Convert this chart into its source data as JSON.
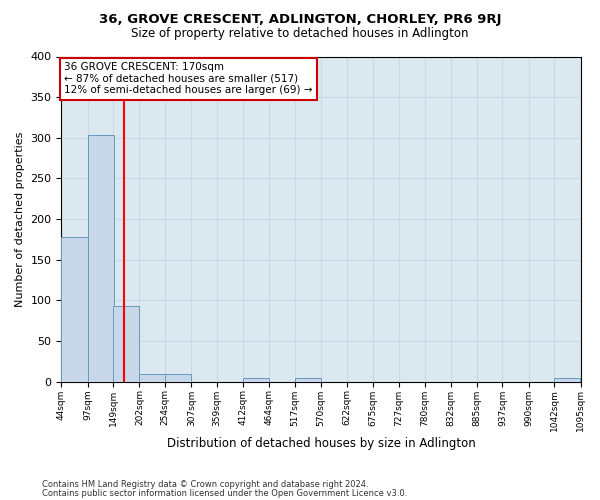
{
  "title": "36, GROVE CRESCENT, ADLINGTON, CHORLEY, PR6 9RJ",
  "subtitle": "Size of property relative to detached houses in Adlington",
  "xlabel": "Distribution of detached houses by size in Adlington",
  "ylabel": "Number of detached properties",
  "annotation_line1": "36 GROVE CRESCENT: 170sqm",
  "annotation_line2": "← 87% of detached houses are smaller (517)",
  "annotation_line3": "12% of semi-detached houses are larger (69) →",
  "property_size": 170,
  "bin_edges": [
    44,
    97,
    149,
    202,
    254,
    307,
    359,
    412,
    464,
    517,
    570,
    622,
    675,
    727,
    780,
    832,
    885,
    937,
    990,
    1042,
    1095
  ],
  "bin_labels": [
    "44sqm",
    "97sqm",
    "149sqm",
    "202sqm",
    "254sqm",
    "307sqm",
    "359sqm",
    "412sqm",
    "464sqm",
    "517sqm",
    "570sqm",
    "622sqm",
    "675sqm",
    "727sqm",
    "780sqm",
    "832sqm",
    "885sqm",
    "937sqm",
    "990sqm",
    "1042sqm",
    "1095sqm"
  ],
  "bar_heights": [
    178,
    304,
    93,
    10,
    10,
    0,
    0,
    4,
    0,
    5,
    0,
    0,
    0,
    0,
    0,
    0,
    0,
    0,
    0,
    4,
    0
  ],
  "bar_color": "#c8d8e8",
  "bar_edge_color": "#6699bb",
  "red_line_x": 170,
  "grid_color": "#c8d8e8",
  "background_color": "#dce8f0",
  "footer_line1": "Contains HM Land Registry data © Crown copyright and database right 2024.",
  "footer_line2": "Contains public sector information licensed under the Open Government Licence v3.0.",
  "ylim": [
    0,
    400
  ],
  "yticks": [
    0,
    50,
    100,
    150,
    200,
    250,
    300,
    350,
    400
  ],
  "figsize": [
    6.0,
    5.0
  ],
  "dpi": 100
}
